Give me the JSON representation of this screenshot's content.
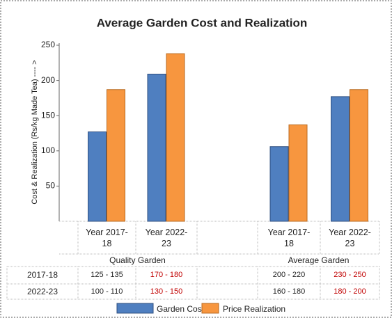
{
  "chart_data": {
    "type": "bar",
    "title": "Average Garden Cost and Realization",
    "y_label": "Cost & Realization (Rs/kg Made Tea) ---- >",
    "categories": [
      "Year 2017-18",
      "Year 2022-23",
      null,
      "Year 2017-18",
      "Year 2022-23"
    ],
    "groups": [
      "Quality Garden",
      "Average Garden"
    ],
    "series": [
      {
        "name": "Garden Cost",
        "color": "#4f7fc0",
        "text_color": "#222222",
        "values": [
          127,
          209,
          null,
          106,
          177
        ]
      },
      {
        "name": "Price Realization",
        "color": "#f7963f",
        "text_color": "#c00000",
        "values": [
          187,
          238,
          null,
          137,
          187
        ]
      }
    ],
    "ylim": [
      0,
      250
    ],
    "yticks": [
      50,
      100,
      150,
      200,
      250
    ],
    "table": {
      "rows": [
        {
          "label": "2017-18",
          "cells": [
            [
              "125 - 135",
              "170 - 180"
            ],
            [
              "200 - 220",
              "230 - 250"
            ]
          ]
        },
        {
          "label": "2022-23",
          "cells": [
            [
              "100 - 110",
              "130 - 150"
            ],
            [
              "160 - 180",
              "180 - 200"
            ]
          ]
        }
      ]
    }
  }
}
